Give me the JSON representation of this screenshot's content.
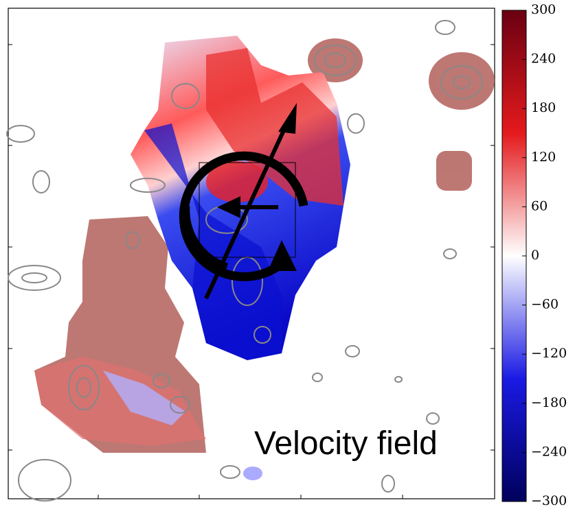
{
  "chart_data": {
    "type": "velocity-map",
    "annotation": "Velocity field",
    "colorbar": {
      "lim": [
        -300,
        300
      ],
      "colormap": [
        "#6a0012",
        "#e41a1c",
        "#ffffff",
        "#1a1ae4",
        "#00005c"
      ],
      "ticks": [
        300,
        240,
        180,
        120,
        60,
        0,
        {
          "value": -60,
          "label": "−60"
        },
        {
          "value": -120,
          "label": "−120"
        },
        {
          "value": -180,
          "label": "−180"
        },
        {
          "value": -240,
          "label": "−240"
        },
        {
          "value": -300,
          "label": "−300"
        }
      ]
    }
  }
}
